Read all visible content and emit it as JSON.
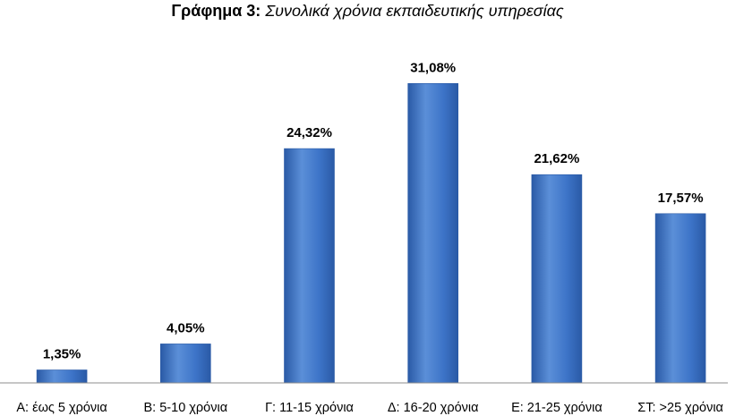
{
  "chart_data": {
    "type": "bar",
    "title_prefix": "Γράφημα 3:",
    "title": "Συνολικά χρόνια εκπαιδευτικής υπηρεσίας",
    "categories": [
      "Α: έως 5 χρόνια",
      "Β: 5-10 χρόνια",
      "Γ: 11-15 χρόνια",
      "Δ: 16-20 χρόνια",
      "Ε: 21-25 χρόνια",
      "ΣΤ: >25 χρόνια"
    ],
    "values": [
      1.35,
      4.05,
      24.32,
      31.08,
      21.62,
      17.57
    ],
    "data_labels": [
      "1,35%",
      "4,05%",
      "24,32%",
      "31,08%",
      "21,62%",
      "17,57%"
    ],
    "xlabel": "",
    "ylabel": "",
    "ylim": [
      0,
      35
    ],
    "grid": false,
    "legend": "none",
    "colors": {
      "bar_light": "#5b8fd8",
      "bar_main": "#3d74c8",
      "bar_dark": "#2a5aa6",
      "axis": "#8c8c8c"
    }
  }
}
